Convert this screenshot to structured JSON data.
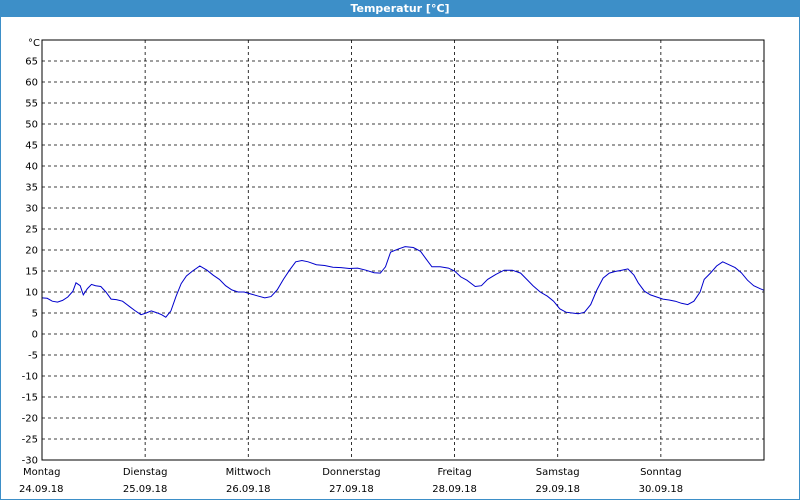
{
  "window": {
    "title": "Temperatur [°C]"
  },
  "colors": {
    "titlebar": "#3d8fc8",
    "line": "#0000cc",
    "grid": "#000000"
  },
  "chart_data": {
    "type": "line",
    "title": "Temperatur [°C]",
    "ylabel": "°C",
    "ylim": [
      -30,
      70
    ],
    "yticks": [
      -30,
      -25,
      -20,
      -15,
      -10,
      -5,
      0,
      5,
      10,
      15,
      20,
      25,
      30,
      35,
      40,
      45,
      50,
      55,
      60,
      65
    ],
    "xlim": [
      0,
      7
    ],
    "x_unit": "days",
    "grid": true,
    "days": [
      {
        "weekday": "Montag",
        "date": "24.09.18"
      },
      {
        "weekday": "Dienstag",
        "date": "25.09.18"
      },
      {
        "weekday": "Mittwoch",
        "date": "26.09.18"
      },
      {
        "weekday": "Donnerstag",
        "date": "27.09.18"
      },
      {
        "weekday": "Freitag",
        "date": "28.09.18"
      },
      {
        "weekday": "Samstag",
        "date": "29.09.18"
      },
      {
        "weekday": "Sonntag",
        "date": "30.09.18"
      }
    ],
    "series": [
      {
        "points": [
          [
            0.0,
            8.6
          ],
          [
            0.05,
            8.5
          ],
          [
            0.1,
            7.8
          ],
          [
            0.15,
            7.6
          ],
          [
            0.2,
            8.0
          ],
          [
            0.25,
            8.8
          ],
          [
            0.3,
            10.2
          ],
          [
            0.33,
            12.2
          ],
          [
            0.37,
            11.5
          ],
          [
            0.4,
            9.3
          ],
          [
            0.44,
            10.8
          ],
          [
            0.48,
            11.8
          ],
          [
            0.52,
            11.5
          ],
          [
            0.57,
            11.3
          ],
          [
            0.62,
            10.0
          ],
          [
            0.67,
            8.3
          ],
          [
            0.72,
            8.2
          ],
          [
            0.78,
            7.8
          ],
          [
            0.85,
            6.5
          ],
          [
            0.9,
            5.6
          ],
          [
            0.96,
            4.6
          ],
          [
            1.0,
            4.9
          ],
          [
            1.06,
            5.5
          ],
          [
            1.12,
            5.0
          ],
          [
            1.16,
            4.6
          ],
          [
            1.2,
            4.0
          ],
          [
            1.25,
            5.5
          ],
          [
            1.3,
            9.0
          ],
          [
            1.35,
            12.0
          ],
          [
            1.4,
            13.8
          ],
          [
            1.46,
            15.0
          ],
          [
            1.53,
            16.2
          ],
          [
            1.6,
            15.2
          ],
          [
            1.66,
            14.0
          ],
          [
            1.72,
            13.0
          ],
          [
            1.78,
            11.5
          ],
          [
            1.84,
            10.5
          ],
          [
            1.9,
            10.0
          ],
          [
            1.96,
            10.0
          ],
          [
            2.03,
            9.5
          ],
          [
            2.1,
            9.0
          ],
          [
            2.16,
            8.6
          ],
          [
            2.22,
            8.9
          ],
          [
            2.28,
            10.5
          ],
          [
            2.34,
            13.0
          ],
          [
            2.4,
            15.2
          ],
          [
            2.46,
            17.2
          ],
          [
            2.52,
            17.5
          ],
          [
            2.58,
            17.2
          ],
          [
            2.66,
            16.5
          ],
          [
            2.74,
            16.3
          ],
          [
            2.82,
            15.9
          ],
          [
            2.9,
            15.8
          ],
          [
            2.98,
            15.6
          ],
          [
            3.06,
            15.7
          ],
          [
            3.14,
            15.2
          ],
          [
            3.22,
            14.6
          ],
          [
            3.28,
            14.5
          ],
          [
            3.33,
            16.0
          ],
          [
            3.38,
            19.5
          ],
          [
            3.45,
            20.2
          ],
          [
            3.52,
            20.8
          ],
          [
            3.6,
            20.6
          ],
          [
            3.67,
            19.7
          ],
          [
            3.72,
            18.0
          ],
          [
            3.78,
            16.0
          ],
          [
            3.86,
            16.0
          ],
          [
            3.94,
            15.7
          ],
          [
            4.0,
            15.0
          ],
          [
            4.06,
            13.6
          ],
          [
            4.12,
            12.8
          ],
          [
            4.2,
            11.3
          ],
          [
            4.26,
            11.5
          ],
          [
            4.32,
            13.0
          ],
          [
            4.4,
            14.2
          ],
          [
            4.48,
            15.2
          ],
          [
            4.56,
            15.2
          ],
          [
            4.64,
            14.5
          ],
          [
            4.7,
            13.0
          ],
          [
            4.76,
            11.5
          ],
          [
            4.83,
            10.0
          ],
          [
            4.9,
            9.0
          ],
          [
            4.96,
            7.8
          ],
          [
            5.02,
            6.0
          ],
          [
            5.08,
            5.2
          ],
          [
            5.14,
            5.0
          ],
          [
            5.2,
            4.8
          ],
          [
            5.26,
            5.2
          ],
          [
            5.32,
            7.0
          ],
          [
            5.38,
            10.5
          ],
          [
            5.44,
            13.3
          ],
          [
            5.5,
            14.5
          ],
          [
            5.56,
            14.9
          ],
          [
            5.62,
            15.2
          ],
          [
            5.68,
            15.5
          ],
          [
            5.74,
            14.0
          ],
          [
            5.78,
            12.2
          ],
          [
            5.84,
            10.2
          ],
          [
            5.9,
            9.3
          ],
          [
            5.96,
            8.8
          ],
          [
            6.02,
            8.3
          ],
          [
            6.08,
            8.1
          ],
          [
            6.14,
            7.8
          ],
          [
            6.2,
            7.3
          ],
          [
            6.26,
            7.0
          ],
          [
            6.32,
            7.8
          ],
          [
            6.38,
            10.0
          ],
          [
            6.42,
            13.0
          ],
          [
            6.48,
            14.5
          ],
          [
            6.54,
            16.2
          ],
          [
            6.6,
            17.2
          ],
          [
            6.66,
            16.5
          ],
          [
            6.72,
            15.8
          ],
          [
            6.78,
            14.6
          ],
          [
            6.84,
            12.8
          ],
          [
            6.9,
            11.5
          ],
          [
            6.96,
            10.8
          ],
          [
            7.0,
            10.4
          ]
        ]
      }
    ]
  }
}
